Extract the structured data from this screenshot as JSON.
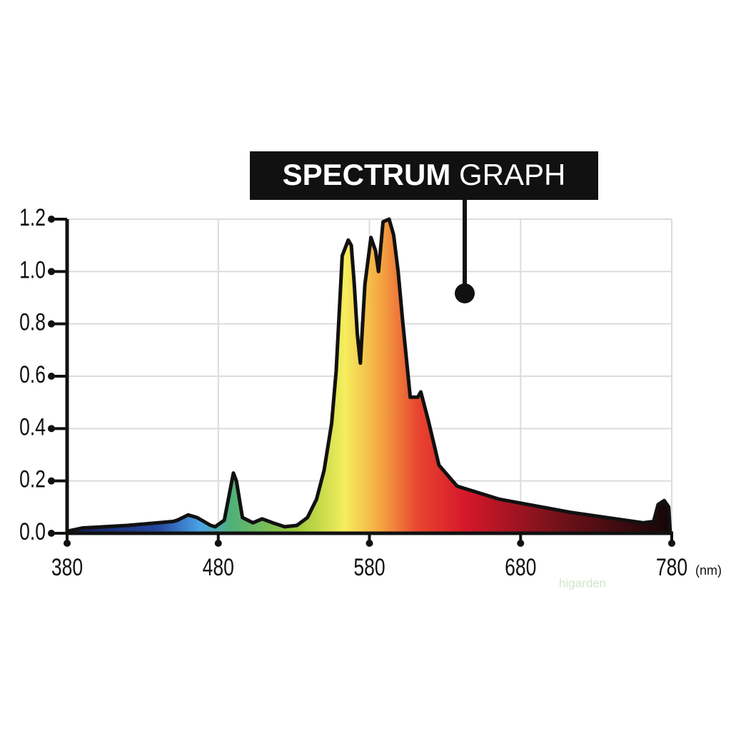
{
  "chart_data": {
    "type": "area",
    "title": [
      "SPECTRUM",
      "GRAPH"
    ],
    "x_unit": "(nm)",
    "watermark": "higarden",
    "x": [
      382,
      390,
      420,
      450,
      453,
      460,
      466,
      475,
      478,
      484,
      488,
      490,
      492,
      496,
      503,
      509,
      516,
      524,
      532,
      539,
      545,
      550,
      555,
      558,
      562,
      566,
      568,
      570,
      572,
      574,
      577,
      581,
      584,
      586,
      589,
      593,
      596,
      599,
      602,
      607,
      612,
      614,
      619,
      626,
      638,
      666,
      713,
      761,
      768,
      771,
      775,
      778,
      779
    ],
    "values": [
      0.01,
      0.02,
      0.03,
      0.045,
      0.05,
      0.07,
      0.06,
      0.03,
      0.025,
      0.05,
      0.17,
      0.23,
      0.2,
      0.06,
      0.04,
      0.055,
      0.04,
      0.025,
      0.03,
      0.06,
      0.13,
      0.24,
      0.42,
      0.62,
      1.06,
      1.12,
      1.1,
      0.95,
      0.76,
      0.65,
      0.95,
      1.13,
      1.08,
      1.0,
      1.19,
      1.2,
      1.14,
      1.0,
      0.81,
      0.52,
      0.52,
      0.54,
      0.43,
      0.26,
      0.18,
      0.13,
      0.08,
      0.04,
      0.045,
      0.11,
      0.125,
      0.1,
      0.0
    ],
    "xlim": [
      380,
      780
    ],
    "ylim": [
      0,
      1.2
    ],
    "xticks": [
      380,
      480,
      580,
      680,
      780
    ],
    "yticks": [
      {
        "value": 0,
        "label": "0.0"
      },
      0.2,
      0.4,
      0.6,
      0.8,
      {
        "value": 1,
        "label": "1.0"
      },
      1.2
    ],
    "grid": true
  }
}
